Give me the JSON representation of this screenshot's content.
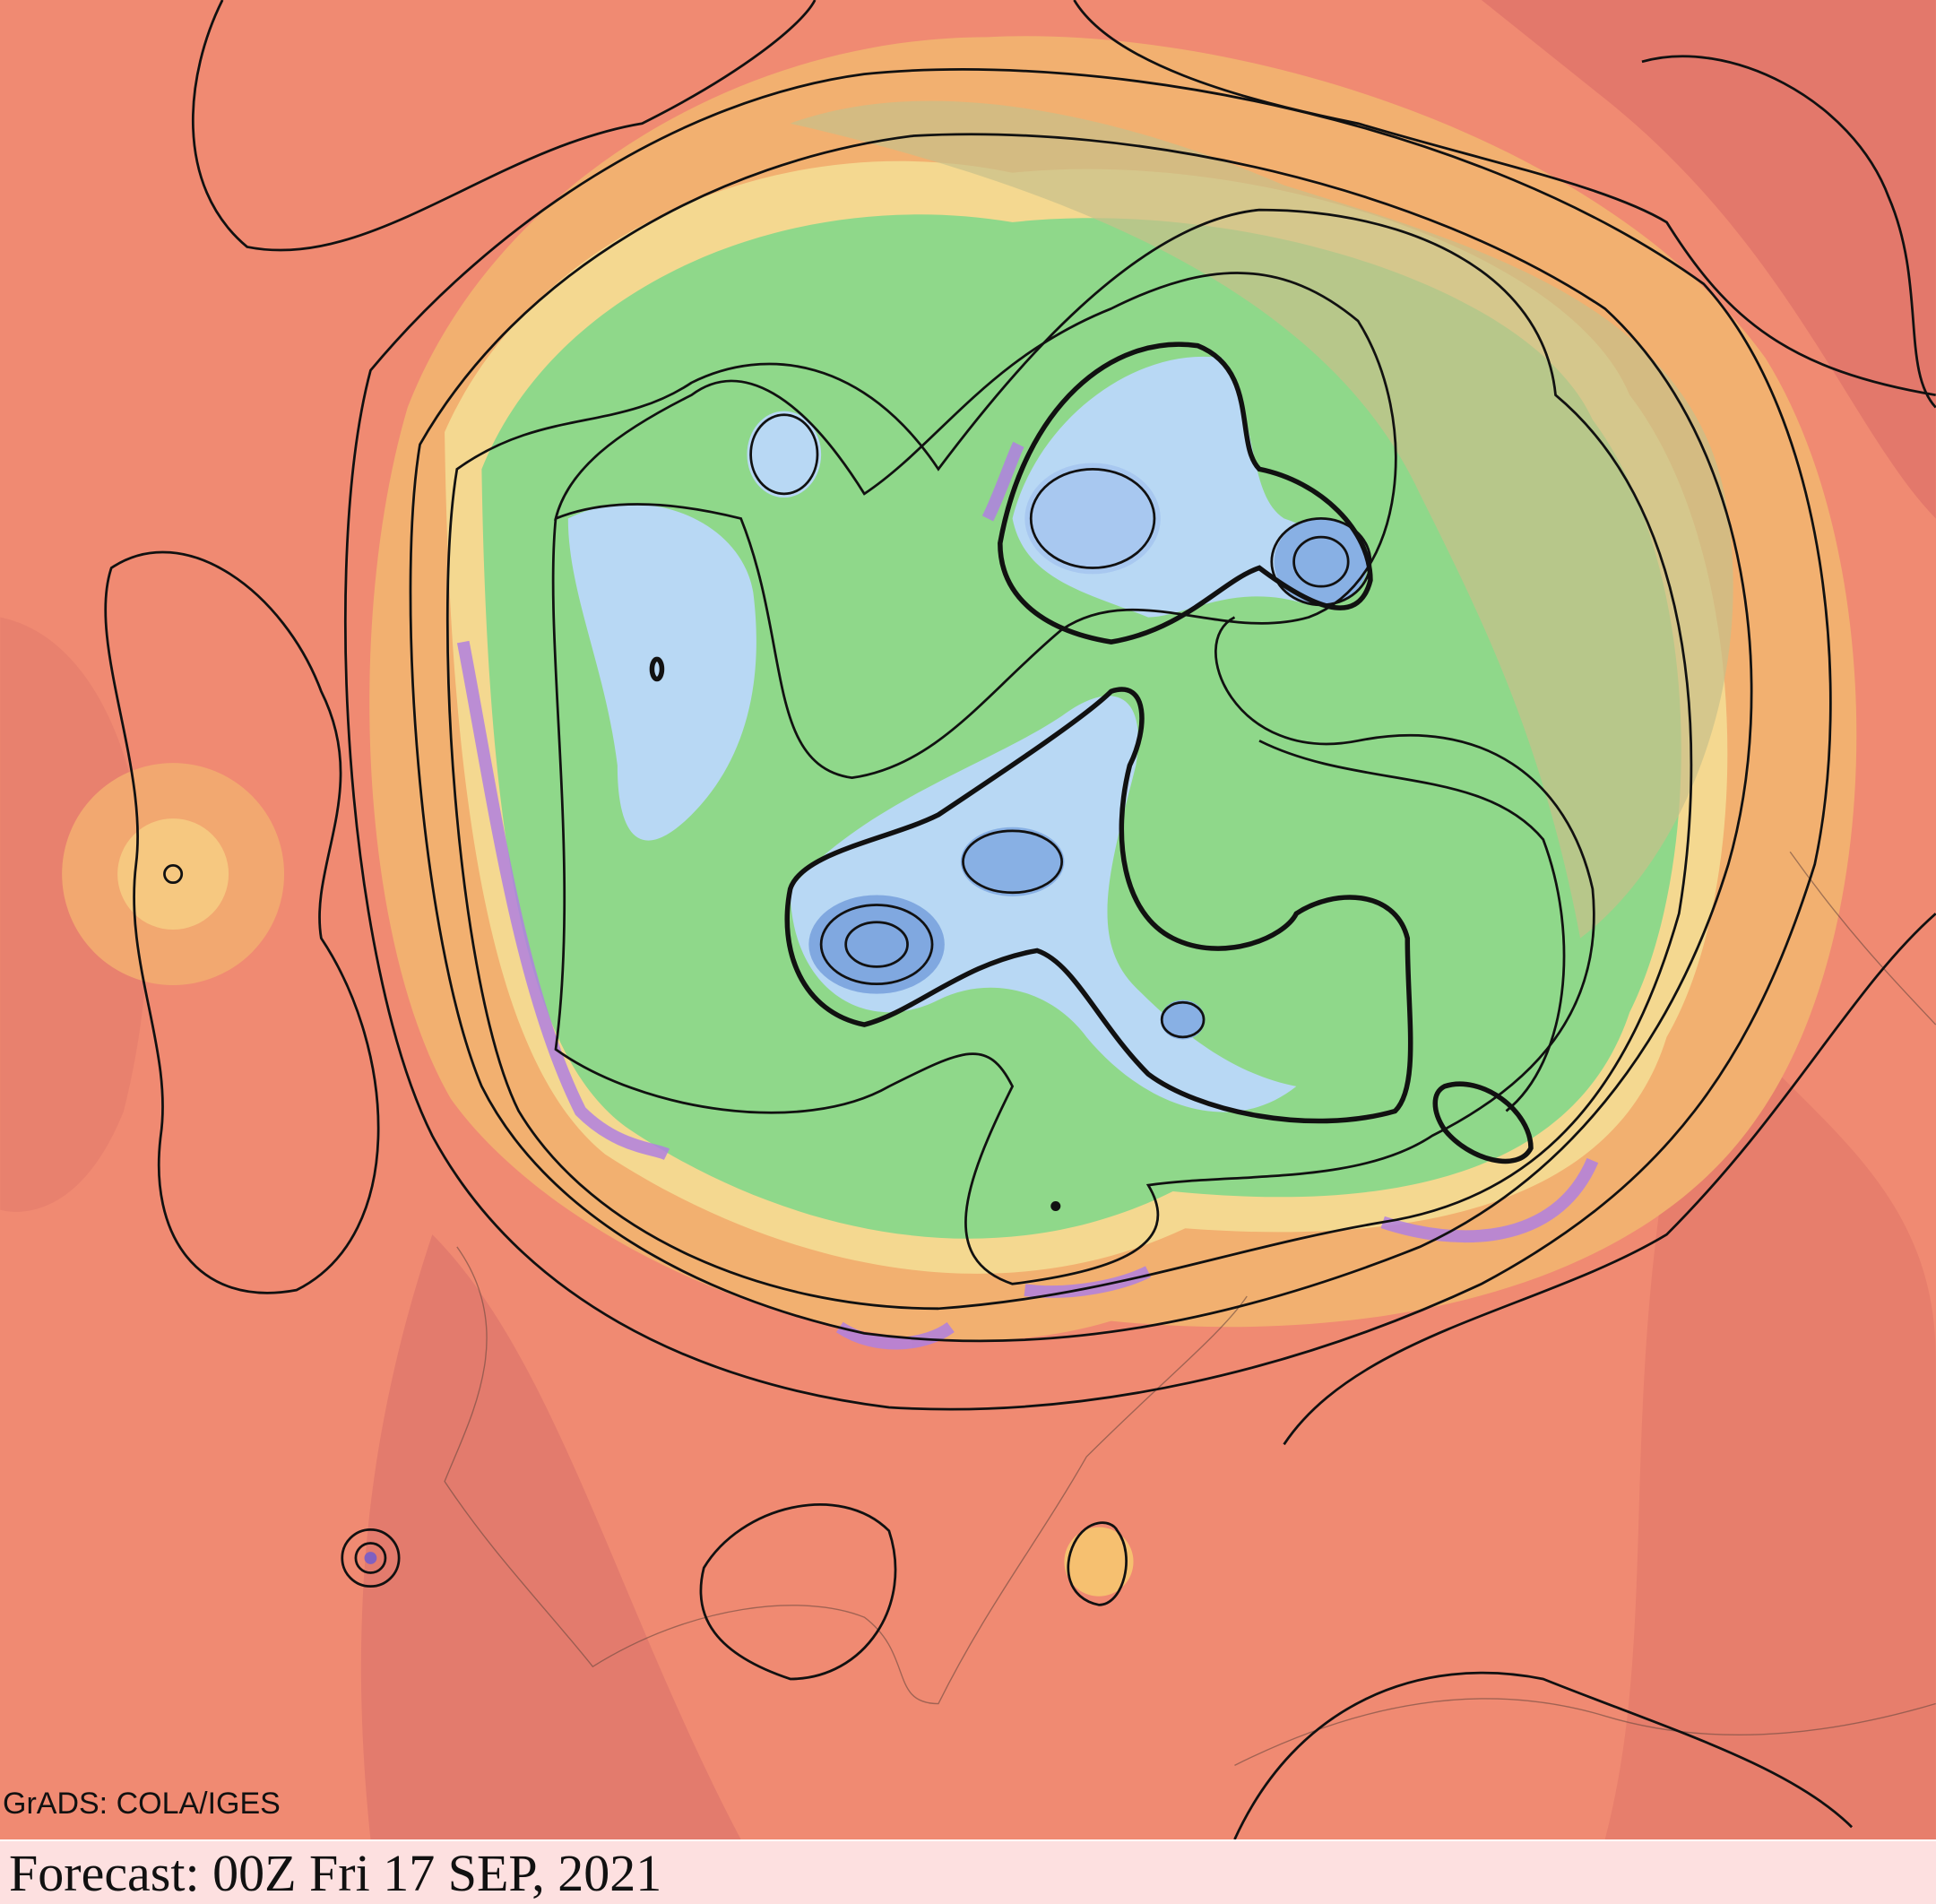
{
  "credit": "GrADS: COLA/IGES",
  "footer": {
    "forecast": "Forecast: 00Z Fri 17 SEP, 2021"
  }
}
